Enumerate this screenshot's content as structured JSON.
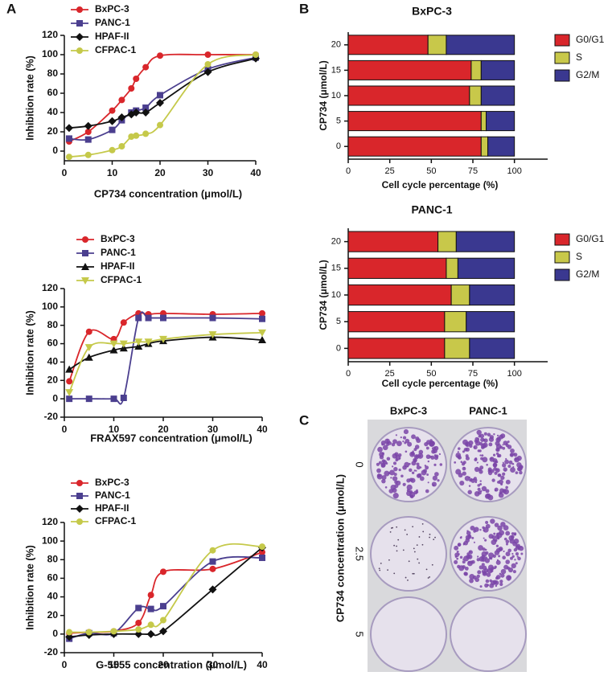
{
  "panel_labels": [
    "A",
    "B",
    "C"
  ],
  "chart_data": [
    {
      "type": "line",
      "xlabel": "CP734 concentration (μmol/L)",
      "ylabel": "Inhibition rate (%)",
      "x": [
        1,
        5,
        10,
        12,
        14,
        15,
        17,
        20,
        30,
        40
      ],
      "xlim": [
        0,
        40
      ],
      "xticks": [
        0,
        10,
        20,
        30,
        40
      ],
      "ylim": [
        -10,
        120
      ],
      "yticks": [
        0,
        20,
        40,
        60,
        80,
        100,
        120
      ],
      "series": [
        {
          "name": "BxPC-3",
          "color": "#d9262b",
          "marker": "circle",
          "values": [
            10,
            20,
            42,
            53,
            65,
            75,
            87,
            99,
            100,
            100
          ]
        },
        {
          "name": "PANC-1",
          "color": "#4b3f8f",
          "marker": "square",
          "values": [
            13,
            12,
            22,
            32,
            40,
            42,
            45,
            58,
            85,
            97
          ]
        },
        {
          "name": "HPAF-II",
          "color": "#111111",
          "marker": "diamond",
          "values": [
            24,
            26,
            31,
            35,
            38,
            40,
            40,
            50,
            82,
            96
          ]
        },
        {
          "name": "CFPAC-1",
          "color": "#c5c94a",
          "marker": "circle",
          "values": [
            -6,
            -4,
            1,
            5,
            15,
            16,
            18,
            27,
            90,
            100
          ]
        }
      ]
    },
    {
      "type": "line",
      "xlabel": "FRAX597 concentration (μmol/L)",
      "ylabel": "Inhibition rate (%)",
      "x": [
        1,
        5,
        10,
        12,
        15,
        17,
        20,
        30,
        40
      ],
      "xlim": [
        0,
        40
      ],
      "xticks": [
        0,
        10,
        20,
        30,
        40
      ],
      "ylim": [
        -20,
        120
      ],
      "yticks": [
        -20,
        0,
        20,
        40,
        60,
        80,
        100,
        120
      ],
      "series": [
        {
          "name": "BxPC-3",
          "color": "#d9262b",
          "marker": "circle",
          "values": [
            19,
            73,
            65,
            83,
            93,
            92,
            93,
            92,
            93
          ]
        },
        {
          "name": "PANC-1",
          "color": "#4b3f8f",
          "marker": "square",
          "values": [
            0,
            0,
            0,
            1,
            88,
            88,
            88,
            88,
            87
          ]
        },
        {
          "name": "HPAF-II",
          "color": "#111111",
          "marker": "triangle-up",
          "values": [
            32,
            45,
            53,
            55,
            57,
            60,
            63,
            67,
            64
          ]
        },
        {
          "name": "CFPAC-1",
          "color": "#c5c94a",
          "marker": "triangle-down",
          "values": [
            7,
            56,
            60,
            60,
            62,
            62,
            65,
            70,
            72
          ]
        }
      ]
    },
    {
      "type": "line",
      "xlabel": "G-5555 concentration (μmol/L)",
      "ylabel": "Inhibition rate (%)",
      "x": [
        1,
        5,
        10,
        15,
        17.5,
        20,
        30,
        40
      ],
      "xlim": [
        0,
        40
      ],
      "xticks": [
        0,
        10,
        20,
        30,
        40
      ],
      "ylim": [
        -20,
        120
      ],
      "yticks": [
        -20,
        0,
        20,
        40,
        60,
        80,
        100,
        120
      ],
      "series": [
        {
          "name": "BxPC-3",
          "color": "#d9262b",
          "marker": "circle",
          "values": [
            1,
            2,
            3,
            12,
            42,
            67,
            70,
            88
          ]
        },
        {
          "name": "PANC-1",
          "color": "#4b3f8f",
          "marker": "square",
          "values": [
            -5,
            1,
            1,
            28,
            27,
            30,
            78,
            82
          ]
        },
        {
          "name": "HPAF-II",
          "color": "#111111",
          "marker": "diamond",
          "values": [
            -3,
            -1,
            0,
            0,
            0,
            3,
            48,
            93
          ]
        },
        {
          "name": "CFPAC-1",
          "color": "#c5c94a",
          "marker": "circle",
          "values": [
            2,
            2,
            3,
            5,
            10,
            15,
            90,
            94
          ]
        }
      ]
    },
    {
      "type": "bar",
      "orientation": "horizontal",
      "stacked": true,
      "title": "BxPC-3",
      "xlabel": "Cell cycle percentage (%)",
      "ylabel": "CP734 (μmol/L)",
      "categories": [
        "0",
        "5",
        "10",
        "15",
        "20"
      ],
      "xlim": [
        0,
        120
      ],
      "xticks": [
        0,
        25,
        50,
        75,
        100
      ],
      "series": [
        {
          "name": "G0/G1",
          "color": "#d9262b",
          "values": [
            80,
            80,
            73,
            74,
            48
          ]
        },
        {
          "name": "S",
          "color": "#c8c84a",
          "values": [
            4,
            3,
            7,
            6,
            11
          ]
        },
        {
          "name": "G2/M",
          "color": "#3a3890",
          "values": [
            16,
            17,
            20,
            20,
            41
          ]
        }
      ]
    },
    {
      "type": "bar",
      "orientation": "horizontal",
      "stacked": true,
      "title": "PANC-1",
      "xlabel": "Cell cycle percentage (%)",
      "ylabel": "CP734 (μmol/L)",
      "categories": [
        "0",
        "5",
        "10",
        "15",
        "20"
      ],
      "xlim": [
        0,
        120
      ],
      "xticks": [
        0,
        25,
        50,
        75,
        100
      ],
      "series": [
        {
          "name": "G0/G1",
          "color": "#d9262b",
          "values": [
            58,
            58,
            62,
            59,
            54
          ]
        },
        {
          "name": "S",
          "color": "#c8c84a",
          "values": [
            15,
            13,
            11,
            7,
            11
          ]
        },
        {
          "name": "G2/M",
          "color": "#3a3890",
          "values": [
            27,
            29,
            27,
            34,
            35
          ]
        }
      ]
    }
  ],
  "colony_assay": {
    "ylabel": "CP734 concentration (μmol/L)",
    "columns": [
      "BxPC-3",
      "PANC-1"
    ],
    "rows": [
      "0",
      "2.5",
      "5"
    ]
  }
}
